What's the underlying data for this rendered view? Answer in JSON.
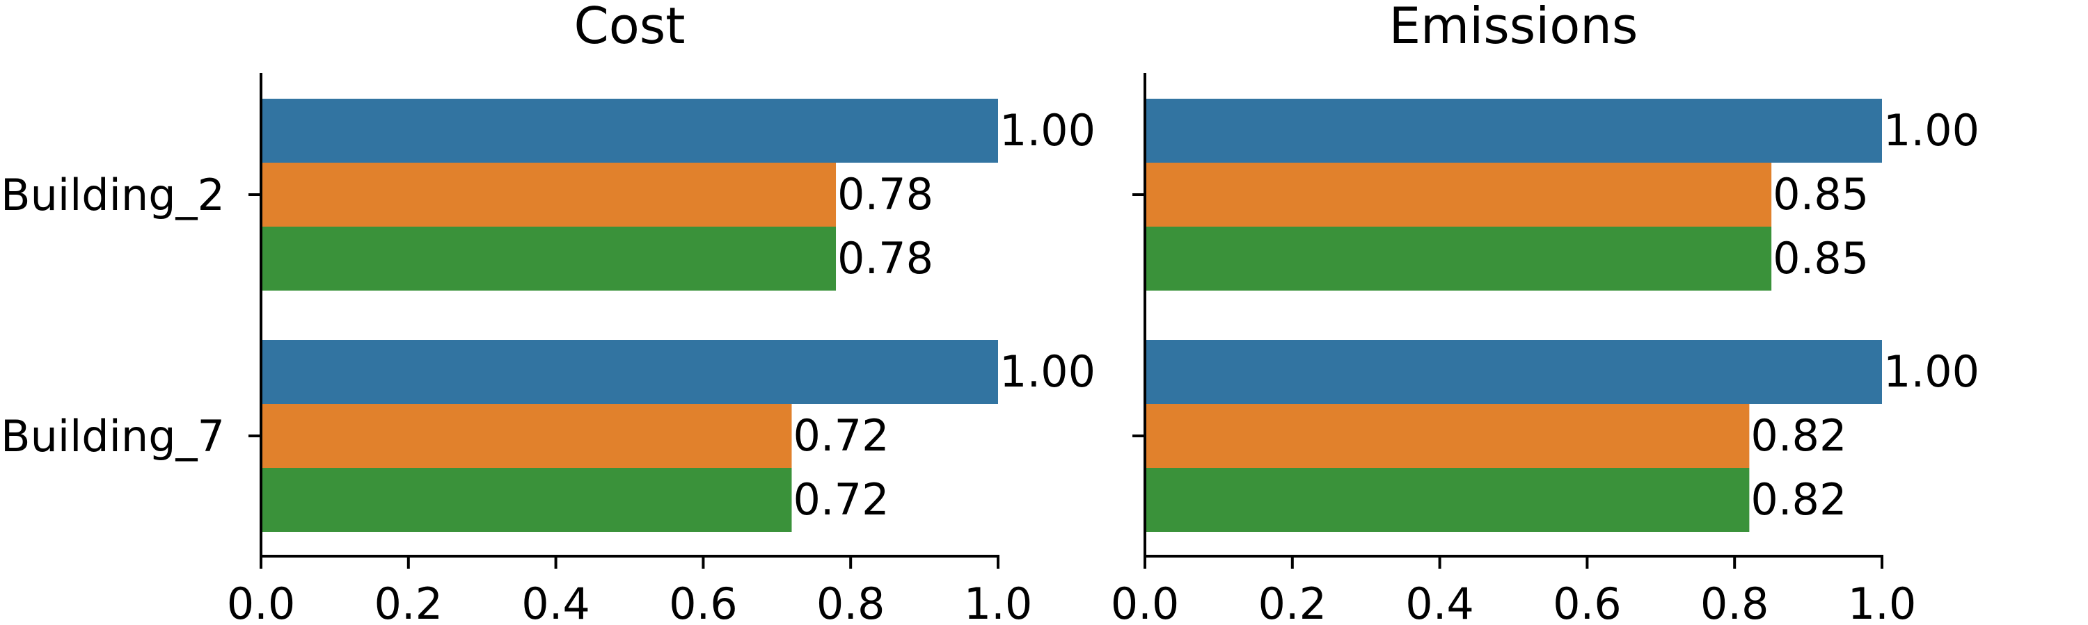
{
  "chart_data": [
    {
      "type": "bar",
      "orientation": "horizontal",
      "title": "Cost",
      "categories": [
        "Building_2",
        "Building_7"
      ],
      "series": [
        {
          "color": "#3274a1",
          "values": [
            1.0,
            1.0
          ]
        },
        {
          "color": "#e1812c",
          "values": [
            0.78,
            0.72
          ]
        },
        {
          "color": "#3a923a",
          "values": [
            0.78,
            0.72
          ]
        }
      ],
      "xlim": [
        0,
        1.0
      ],
      "xticks": [
        "0.0",
        "0.2",
        "0.4",
        "0.6",
        "0.8",
        "1.0"
      ],
      "show_category_labels": true,
      "data_labels": true,
      "grid": false
    },
    {
      "type": "bar",
      "orientation": "horizontal",
      "title": "Emissions",
      "categories": [
        "Building_2",
        "Building_7"
      ],
      "series": [
        {
          "color": "#3274a1",
          "values": [
            1.0,
            1.0
          ]
        },
        {
          "color": "#e1812c",
          "values": [
            0.85,
            0.82
          ]
        },
        {
          "color": "#3a923a",
          "values": [
            0.85,
            0.82
          ]
        }
      ],
      "xlim": [
        0,
        1.0
      ],
      "xticks": [
        "0.0",
        "0.2",
        "0.4",
        "0.6",
        "0.8",
        "1.0"
      ],
      "show_category_labels": false,
      "data_labels": true,
      "grid": false
    }
  ]
}
